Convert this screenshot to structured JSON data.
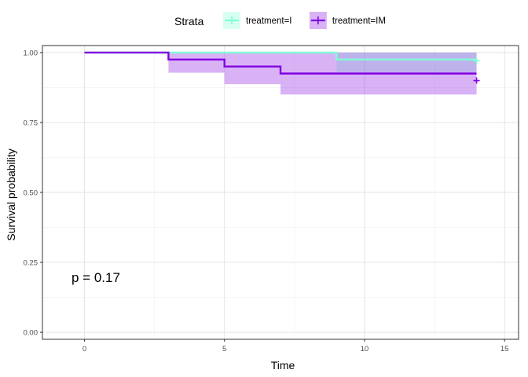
{
  "chart_data": {
    "type": "line",
    "subtype": "kaplan-meier",
    "xlabel": "Time",
    "ylabel": "Survival probability",
    "xlim": [
      -1.5,
      15.5
    ],
    "ylim": [
      -0.025,
      1.025
    ],
    "x_ticks": [
      0,
      5,
      10,
      15
    ],
    "x_tick_labels": [
      "0",
      "5",
      "10",
      "15"
    ],
    "y_ticks": [
      0,
      0.25,
      0.5,
      0.75,
      1.0
    ],
    "y_tick_labels": [
      "0.00",
      "0.25",
      "0.50",
      "0.75",
      "1.00"
    ],
    "grid": true,
    "legend": {
      "title": "Strata",
      "position": "top"
    },
    "annotation": "p = 0.17",
    "series": [
      {
        "name": "treatment=I",
        "color": "#7FFFD4",
        "steps": [
          {
            "x": 0,
            "y": 1.0,
            "lower": 1.0,
            "upper": 1.0
          },
          {
            "x": 9,
            "y": 0.975,
            "lower": 0.93,
            "upper": 1.0
          }
        ],
        "end_x": 14,
        "censor": [
          {
            "x": 14,
            "y": 0.97
          }
        ]
      },
      {
        "name": "treatment=IM",
        "color": "#8000E0",
        "steps": [
          {
            "x": 0,
            "y": 1.0,
            "lower": 1.0,
            "upper": 1.0
          },
          {
            "x": 3,
            "y": 0.975,
            "lower": 0.928,
            "upper": 1.0
          },
          {
            "x": 5,
            "y": 0.95,
            "lower": 0.887,
            "upper": 1.0
          },
          {
            "x": 7,
            "y": 0.925,
            "lower": 0.85,
            "upper": 1.0
          }
        ],
        "end_x": 14,
        "censor": [
          {
            "x": 14,
            "y": 0.9
          }
        ]
      }
    ]
  }
}
